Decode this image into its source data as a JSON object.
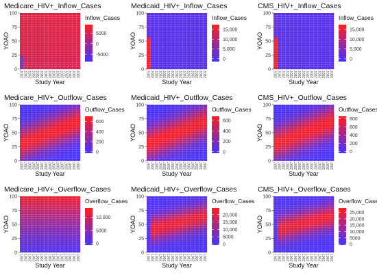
{
  "chart_data": [
    {
      "type": "heatmap",
      "title": "Medicare_HIV+_Inflow_Cases",
      "xlabel": "Study Year",
      "ylabel": "YOAO",
      "y_ticks": [
        0,
        25,
        50,
        75,
        100
      ],
      "ylim": [
        0,
        100
      ],
      "x_tick_label": "2007",
      "legend": {
        "title": "Inflow_Cases",
        "ticks": [
          5000,
          0,
          -5000
        ],
        "tick_labels": [
          "5000",
          "0",
          "-5000"
        ],
        "min": -8500,
        "max": 9000
      },
      "colors": {
        "low": "#4433ff",
        "high": "#ff1e1e"
      },
      "pattern": "medicare_inflow"
    },
    {
      "type": "heatmap",
      "title": "Medicaid_HIV+_Inflow_Cases",
      "xlabel": "Study Year",
      "ylabel": "YOAO",
      "y_ticks": [
        0,
        25,
        50,
        75,
        100
      ],
      "ylim": [
        0,
        100
      ],
      "x_tick_label": "2007",
      "legend": {
        "title": "Inflow_Cases",
        "ticks": [
          15000,
          10000,
          5000,
          0
        ],
        "tick_labels": [
          "15,000",
          "10,000",
          "5,000",
          "0"
        ],
        "min": -1500,
        "max": 17500
      },
      "colors": {
        "low": "#4433ff",
        "high": "#ff1e1e"
      },
      "pattern": "medicaid_inflow"
    },
    {
      "type": "heatmap",
      "title": "CMS_HIV+_Inflow_Cases",
      "xlabel": "Study Year",
      "ylabel": "YOAO",
      "y_ticks": [
        0,
        25,
        50,
        75,
        100
      ],
      "ylim": [
        0,
        100
      ],
      "x_tick_label": "2007",
      "legend": {
        "title": "Inflow_Cases",
        "ticks": [
          15000,
          10000,
          5000,
          0
        ],
        "tick_labels": [
          "15,000",
          "10,000",
          "5,000",
          "0"
        ],
        "min": -1500,
        "max": 17500
      },
      "colors": {
        "low": "#4433ff",
        "high": "#ff1e1e"
      },
      "pattern": "cms_inflow"
    },
    {
      "type": "heatmap",
      "title": "Medicare_HIV+_Outflow_Cases",
      "xlabel": "Study Year",
      "ylabel": "YOAO",
      "y_ticks": [
        0,
        25,
        50,
        75,
        100
      ],
      "ylim": [
        0,
        100
      ],
      "x_tick_label": "2007",
      "legend": {
        "title": "Outflow_Cases",
        "ticks": [
          600,
          400,
          200,
          0
        ],
        "tick_labels": [
          "600",
          "400",
          "200",
          "0"
        ],
        "min": -30,
        "max": 700
      },
      "colors": {
        "low": "#4433ff",
        "high": "#ff1e1e"
      },
      "pattern": "outflow"
    },
    {
      "type": "heatmap",
      "title": "Medicaid_HIV+_Outflow_Cases",
      "xlabel": "Study Year",
      "ylabel": "YOAO",
      "y_ticks": [
        0,
        25,
        50,
        75,
        100
      ],
      "ylim": [
        0,
        100
      ],
      "x_tick_label": "2007",
      "legend": {
        "title": "Outflow_Cases",
        "ticks": [
          600,
          400,
          200,
          0
        ],
        "tick_labels": [
          "600",
          "400",
          "200",
          "0"
        ],
        "min": -30,
        "max": 680
      },
      "colors": {
        "low": "#4433ff",
        "high": "#ff1e1e"
      },
      "pattern": "outflow"
    },
    {
      "type": "heatmap",
      "title": "CMS_HIV+_Outflow_Cases",
      "xlabel": "Study Year",
      "ylabel": "YOAO",
      "y_ticks": [
        0,
        25,
        50,
        75,
        100
      ],
      "ylim": [
        0,
        100
      ],
      "x_tick_label": "2007",
      "legend": {
        "title": "Outflow_Cases",
        "ticks": [
          800,
          600,
          400,
          200,
          0
        ],
        "tick_labels": [
          "800",
          "600",
          "400",
          "200",
          "0"
        ],
        "min": -40,
        "max": 860
      },
      "colors": {
        "low": "#4433ff",
        "high": "#ff1e1e"
      },
      "pattern": "outflow"
    },
    {
      "type": "heatmap",
      "title": "Medicare_HIV+_Overflow_Cases",
      "xlabel": "Study Year",
      "ylabel": "YOAO",
      "y_ticks": [
        0,
        25,
        50,
        75,
        100
      ],
      "ylim": [
        0,
        100
      ],
      "x_tick_label": "2007",
      "legend": {
        "title": "Overflow_Cases",
        "ticks": [
          10000,
          5000,
          0
        ],
        "tick_labels": [
          "10,000",
          "5000",
          "0"
        ],
        "min": -500,
        "max": 13500
      },
      "colors": {
        "low": "#4433ff",
        "high": "#ff1e1e"
      },
      "pattern": "medicare_overflow"
    },
    {
      "type": "heatmap",
      "title": "Medicaid_HIV+_Overflow_Cases",
      "xlabel": "Study Year",
      "ylabel": "YOAO",
      "y_ticks": [
        0,
        25,
        50,
        75,
        100
      ],
      "ylim": [
        0,
        100
      ],
      "x_tick_label": "2007",
      "legend": {
        "title": "Overflow_Cases",
        "ticks": [
          20000,
          15000,
          10000,
          5000,
          0
        ],
        "tick_labels": [
          "20,000",
          "15,000",
          "10,000",
          "5000",
          "0"
        ],
        "min": -500,
        "max": 24500
      },
      "colors": {
        "low": "#4433ff",
        "high": "#ff1e1e"
      },
      "pattern": "overflow"
    },
    {
      "type": "heatmap",
      "title": "CMS_HIV+_Overflow_Cases",
      "xlabel": "Study Year",
      "ylabel": "YOAO",
      "y_ticks": [
        0,
        25,
        50,
        75,
        100
      ],
      "ylim": [
        0,
        100
      ],
      "x_tick_label": "2007",
      "legend": {
        "title": "Overflow_Cases",
        "ticks": [
          25000,
          20000,
          15000,
          10000,
          5000,
          0
        ],
        "tick_labels": [
          "25,000",
          "20,000",
          "15,000",
          "10,000",
          "5000",
          "0"
        ],
        "min": -500,
        "max": 28500
      },
      "colors": {
        "low": "#4433ff",
        "high": "#ff1e1e"
      },
      "pattern": "overflow"
    }
  ]
}
